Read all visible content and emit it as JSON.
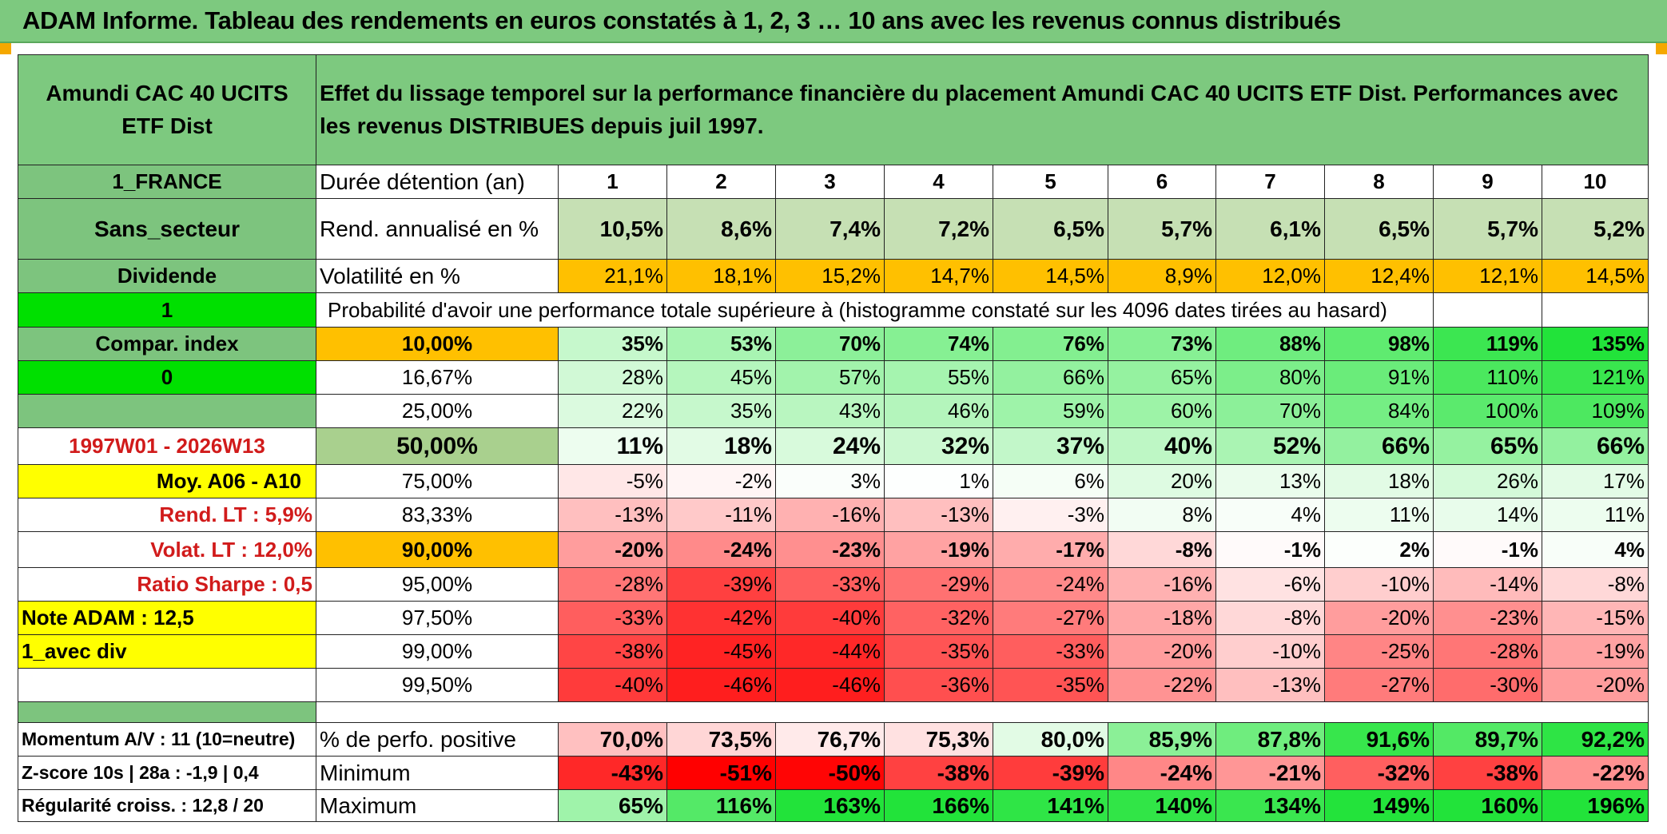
{
  "title": "ADAM Informe. Tableau des rendements en euros constatés à 1, 2, 3 … 10 ans avec les revenus connus distribués",
  "header": {
    "fund_name": "Amundi CAC 40 UCITS ETF Dist",
    "description": "Effet du lissage temporel sur la performance financière du placement Amundi CAC 40 UCITS ETF Dist. Performances avec les revenus DISTRIBUES depuis juil 1997."
  },
  "left_labels": {
    "country": "1_FRANCE",
    "sector": "Sans_secteur",
    "dividend": "Dividende",
    "flag_one": "1",
    "compar_index": "Compar. index",
    "flag_zero": "0",
    "period": "1997W01 - 2026W13",
    "moy": "Moy. A06 - A10",
    "rend_lt": "Rend. LT :   5,9%",
    "volat_lt": "Volat. LT :   12,0%",
    "sharpe": "Ratio Sharpe :   0,5",
    "note_adam": "Note ADAM : 12,5",
    "avec_div": "1_avec div",
    "momentum": "Momentum A/V : 11 (10=neutre)",
    "zscore": "Z-score 10s | 28a : -1,9 | 0,4",
    "regularite": "Régularité croiss. : 12,8 / 20"
  },
  "row_labels": {
    "duration": "Durée détention (an)",
    "rend": "Rend. annualisé en %",
    "volat": "Volatilité en %",
    "proba": "Probabilité d'avoir une performance totale supérieure à (histogramme constaté sur les 4096 dates tirées au hasard)",
    "positive": "% de perfo. positive",
    "minimum": "Minimum",
    "maximum": "Maximum"
  },
  "years": [
    "1",
    "2",
    "3",
    "4",
    "5",
    "6",
    "7",
    "8",
    "9",
    "10"
  ],
  "rend": [
    "10,5%",
    "8,6%",
    "7,4%",
    "7,2%",
    "6,5%",
    "5,7%",
    "6,1%",
    "6,5%",
    "5,7%",
    "5,2%"
  ],
  "volat": [
    "21,1%",
    "18,1%",
    "15,2%",
    "14,7%",
    "14,5%",
    "8,9%",
    "12,0%",
    "12,4%",
    "12,1%",
    "14,5%"
  ],
  "proba_rows": [
    {
      "label": "10,00%",
      "values": [
        "35%",
        "53%",
        "70%",
        "74%",
        "76%",
        "73%",
        "88%",
        "98%",
        "119%",
        "135%"
      ]
    },
    {
      "label": "16,67%",
      "values": [
        "28%",
        "45%",
        "57%",
        "55%",
        "66%",
        "65%",
        "80%",
        "91%",
        "110%",
        "121%"
      ]
    },
    {
      "label": "25,00%",
      "values": [
        "22%",
        "35%",
        "43%",
        "46%",
        "59%",
        "60%",
        "70%",
        "84%",
        "100%",
        "109%"
      ]
    },
    {
      "label": "50,00%",
      "values": [
        "11%",
        "18%",
        "24%",
        "32%",
        "37%",
        "40%",
        "52%",
        "66%",
        "65%",
        "66%"
      ]
    },
    {
      "label": "75,00%",
      "values": [
        "-5%",
        "-2%",
        "3%",
        "1%",
        "6%",
        "20%",
        "13%",
        "18%",
        "26%",
        "17%"
      ]
    },
    {
      "label": "83,33%",
      "values": [
        "-13%",
        "-11%",
        "-16%",
        "-13%",
        "-3%",
        "8%",
        "4%",
        "11%",
        "14%",
        "11%"
      ]
    },
    {
      "label": "90,00%",
      "values": [
        "-20%",
        "-24%",
        "-23%",
        "-19%",
        "-17%",
        "-8%",
        "-1%",
        "2%",
        "-1%",
        "4%"
      ]
    },
    {
      "label": "95,00%",
      "values": [
        "-28%",
        "-39%",
        "-33%",
        "-29%",
        "-24%",
        "-16%",
        "-6%",
        "-10%",
        "-14%",
        "-8%"
      ]
    },
    {
      "label": "97,50%",
      "values": [
        "-33%",
        "-42%",
        "-40%",
        "-32%",
        "-27%",
        "-18%",
        "-8%",
        "-20%",
        "-23%",
        "-15%"
      ]
    },
    {
      "label": "99,00%",
      "values": [
        "-38%",
        "-45%",
        "-44%",
        "-35%",
        "-33%",
        "-20%",
        "-10%",
        "-25%",
        "-28%",
        "-19%"
      ]
    },
    {
      "label": "99,50%",
      "values": [
        "-40%",
        "-46%",
        "-46%",
        "-36%",
        "-35%",
        "-22%",
        "-13%",
        "-27%",
        "-30%",
        "-20%"
      ]
    }
  ],
  "positive": [
    "70,0%",
    "73,5%",
    "76,7%",
    "75,3%",
    "80,0%",
    "85,9%",
    "87,8%",
    "91,6%",
    "89,7%",
    "92,2%"
  ],
  "minimum": [
    "-43%",
    "-51%",
    "-50%",
    "-38%",
    "-39%",
    "-24%",
    "-21%",
    "-32%",
    "-38%",
    "-22%"
  ],
  "maximum": [
    "65%",
    "116%",
    "163%",
    "166%",
    "141%",
    "140%",
    "134%",
    "149%",
    "160%",
    "196%"
  ],
  "colors": {
    "header_green": "#7dc97f",
    "label_green": "#7dc47e",
    "bright_green": "#00e000",
    "yellow": "#ffff00",
    "orange": "#ffc000",
    "rend_green": "#c6e0b4",
    "light_green": "#a9d08e",
    "red_text": "#d11b1b"
  }
}
